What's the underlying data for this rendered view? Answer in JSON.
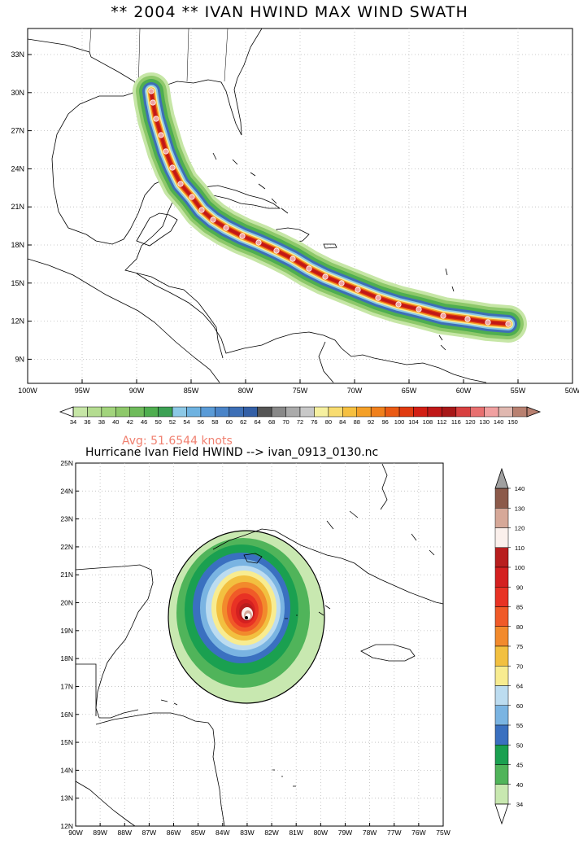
{
  "map1": {
    "title": "** 2004 ** IVAN HWIND MAX WIND SWATH",
    "lat_labels": [
      "33N",
      "30N",
      "27N",
      "24N",
      "21N",
      "18N",
      "15N",
      "12N",
      "9N"
    ],
    "lon_labels": [
      "100W",
      "95W",
      "90W",
      "85W",
      "80W",
      "75W",
      "70W",
      "65W",
      "60W",
      "55W",
      "50W"
    ],
    "colorbar": {
      "labels": [
        "34",
        "36",
        "38",
        "40",
        "42",
        "46",
        "50",
        "52",
        "54",
        "56",
        "58",
        "60",
        "62",
        "64",
        "68",
        "70",
        "72",
        "76",
        "80",
        "84",
        "88",
        "92",
        "96",
        "100",
        "104",
        "108",
        "112",
        "116",
        "120",
        "130",
        "140",
        "150"
      ],
      "colors": [
        "#c6e6a6",
        "#b4dc90",
        "#a2d47c",
        "#8ec86a",
        "#6fbb5b",
        "#4fae4f",
        "#3ca154",
        "#8cc8e6",
        "#6eb2e0",
        "#5a9bd7",
        "#4a84c8",
        "#3d6fb6",
        "#335fa6",
        "#555555",
        "#888888",
        "#aaaaaa",
        "#c8c8c8",
        "#f6f0a0",
        "#f8dc70",
        "#f6c040",
        "#f4a028",
        "#f0801c",
        "#ea5a14",
        "#e03a10",
        "#d21e14",
        "#c01818",
        "#a81818",
        "#d84040",
        "#e87070",
        "#f0a0a0",
        "#e0b8b0",
        "#b88070"
      ]
    }
  },
  "map2": {
    "title": "Hurricane Ivan Field HWIND --> ivan_0913_0130.nc",
    "avg": "Avg: 51.6544 knots",
    "lat_labels": [
      "25N",
      "24N",
      "23N",
      "22N",
      "21N",
      "20N",
      "19N",
      "18N",
      "17N",
      "16N",
      "15N",
      "14N",
      "13N",
      "12N"
    ],
    "lon_labels": [
      "90W",
      "89W",
      "88W",
      "87W",
      "86W",
      "85W",
      "84W",
      "83W",
      "82W",
      "81W",
      "80W",
      "79W",
      "78W",
      "77W",
      "76W",
      "75W"
    ],
    "colorbar": {
      "labels": [
        "140",
        "130",
        "120",
        "110",
        "100",
        "90",
        "85",
        "80",
        "75",
        "70",
        "64",
        "60",
        "55",
        "50",
        "45",
        "40",
        "34"
      ],
      "colors": [
        "#8c5a4a",
        "#d6a898",
        "#fbf0ec",
        "#b81e1e",
        "#d42020",
        "#e83224",
        "#f05a28",
        "#f28a2c",
        "#f2c040",
        "#f8ec90",
        "#bcdcf0",
        "#7ab4e2",
        "#3a70c0",
        "#1aa050",
        "#50b45a",
        "#c8e8b0"
      ]
    }
  },
  "icons": [
    "left-triangle-icon",
    "right-triangle-icon",
    "up-triangle-icon",
    "down-triangle-icon"
  ]
}
